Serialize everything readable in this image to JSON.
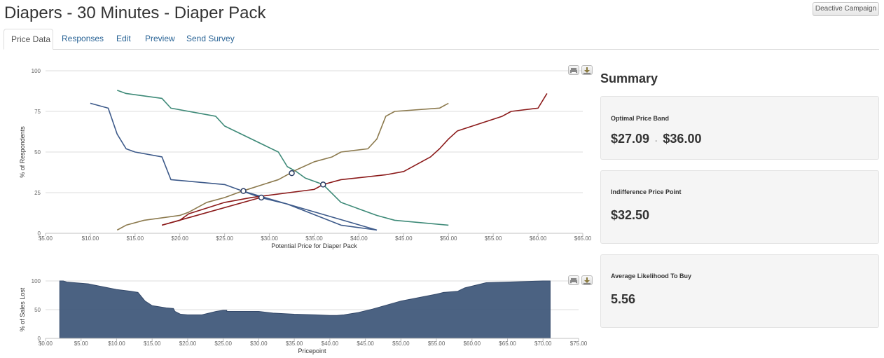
{
  "header": {
    "title": "Diapers - 30 Minutes - Diaper Pack",
    "deactivate_label": "Deactive Campaign"
  },
  "tabs": [
    {
      "label": "Price Data",
      "active": true
    },
    {
      "label": "Responses",
      "active": false
    },
    {
      "label": "Edit",
      "active": false
    },
    {
      "label": "Preview",
      "active": false
    },
    {
      "label": "Send Survey",
      "active": false
    }
  ],
  "icons": {
    "print": "print-icon",
    "download": "download-icon"
  },
  "chart_data": [
    {
      "type": "line",
      "xlabel": "Potential Price for Diaper Pack",
      "ylabel": "% of Respondents",
      "xlim": [
        5,
        65
      ],
      "ylim": [
        0,
        100
      ],
      "x_ticks": [
        "$5.00",
        "$10.00",
        "$15.00",
        "$20.00",
        "$25.00",
        "$30.00",
        "$35.00",
        "$40.00",
        "$45.00",
        "$50.00",
        "$55.00",
        "$60.00",
        "$65.00"
      ],
      "y_ticks": [
        "0",
        "25",
        "50",
        "75",
        "100"
      ],
      "grid": true,
      "series": [
        {
          "color": "#3d5a8a",
          "points": [
            [
              10,
              80
            ],
            [
              12,
              77
            ],
            [
              13,
              61
            ],
            [
              14,
              52
            ],
            [
              15,
              50
            ],
            [
              18,
              47
            ],
            [
              19,
              33
            ],
            [
              25,
              30
            ],
            [
              29,
              22
            ],
            [
              32,
              18
            ],
            [
              38,
              5
            ],
            [
              42,
              2
            ]
          ]
        },
        {
          "color": "#3e8a78",
          "points": [
            [
              13,
              88
            ],
            [
              14,
              86
            ],
            [
              18,
              83
            ],
            [
              19,
              77
            ],
            [
              24,
              72
            ],
            [
              25,
              66
            ],
            [
              31,
              50
            ],
            [
              32,
              41
            ],
            [
              33,
              38
            ],
            [
              34,
              34
            ],
            [
              36,
              30
            ],
            [
              38,
              19
            ],
            [
              42,
              11
            ],
            [
              44,
              8
            ],
            [
              50,
              5
            ]
          ]
        },
        {
          "color": "#8c7a4e",
          "points": [
            [
              13,
              2
            ],
            [
              14,
              5
            ],
            [
              16,
              8
            ],
            [
              20,
              11
            ],
            [
              21,
              13
            ],
            [
              23,
              19
            ],
            [
              25,
              22
            ],
            [
              27,
              26
            ],
            [
              31,
              33
            ],
            [
              33,
              39
            ],
            [
              35,
              44
            ],
            [
              37,
              47
            ],
            [
              38,
              50
            ],
            [
              41,
              52
            ],
            [
              42,
              58
            ],
            [
              43,
              72
            ],
            [
              44,
              75
            ],
            [
              49,
              77
            ],
            [
              50,
              80
            ]
          ]
        },
        {
          "color": "#8b1a1a",
          "points": [
            [
              18,
              5
            ],
            [
              20,
              8
            ],
            [
              21,
              12
            ],
            [
              25,
              19
            ],
            [
              28,
              22
            ],
            [
              35,
              27
            ],
            [
              36,
              30
            ],
            [
              38,
              33
            ],
            [
              43,
              36
            ],
            [
              45,
              38
            ],
            [
              48,
              47
            ],
            [
              49,
              52
            ],
            [
              50,
              58
            ],
            [
              51,
              63
            ],
            [
              56,
              72
            ],
            [
              57,
              75
            ],
            [
              60,
              77
            ],
            [
              61,
              86
            ]
          ]
        },
        {
          "color": "#3d5a8a",
          "points": [
            [
              27,
              26
            ],
            [
              42,
              2
            ]
          ]
        },
        {
          "color": "#8b1a1a",
          "points": [
            [
              18,
              5
            ],
            [
              29,
              22
            ]
          ]
        }
      ],
      "markers": [
        [
          27.1,
          26
        ],
        [
          29.1,
          22
        ],
        [
          32.5,
          37
        ],
        [
          36.0,
          30
        ]
      ]
    },
    {
      "type": "area",
      "xlabel": "Pricepoint",
      "ylabel": "% of Sales Lost",
      "xlim": [
        0,
        75
      ],
      "ylim": [
        0,
        100
      ],
      "x_ticks": [
        "$0.00",
        "$5.00",
        "$10.00",
        "$15.00",
        "$20.00",
        "$25.00",
        "$30.00",
        "$35.00",
        "$40.00",
        "$45.00",
        "$50.00",
        "$55.00",
        "$60.00",
        "$65.00",
        "$70.00",
        "$75.00"
      ],
      "y_ticks": [
        "0",
        "50",
        "100"
      ],
      "grid": true,
      "color": "#3c5577",
      "points": [
        [
          2,
          100
        ],
        [
          2.5,
          100
        ],
        [
          3,
          98
        ],
        [
          6,
          95
        ],
        [
          10,
          85
        ],
        [
          12,
          82
        ],
        [
          13,
          80
        ],
        [
          14,
          65
        ],
        [
          15,
          57
        ],
        [
          17,
          53
        ],
        [
          18,
          52
        ],
        [
          18.2,
          47
        ],
        [
          19,
          42
        ],
        [
          20,
          41
        ],
        [
          22,
          41
        ],
        [
          24,
          47
        ],
        [
          25,
          49
        ],
        [
          25.5,
          49
        ],
        [
          25.5,
          47
        ],
        [
          30,
          47
        ],
        [
          32,
          44
        ],
        [
          35,
          42
        ],
        [
          38,
          41
        ],
        [
          40,
          40
        ],
        [
          41,
          40
        ],
        [
          42,
          41
        ],
        [
          44,
          45
        ],
        [
          46,
          51
        ],
        [
          48,
          58
        ],
        [
          50,
          65
        ],
        [
          55,
          77
        ],
        [
          56,
          80
        ],
        [
          58,
          82
        ],
        [
          59,
          88
        ],
        [
          62,
          97
        ],
        [
          65,
          98
        ],
        [
          70,
          100
        ],
        [
          71,
          100
        ]
      ]
    }
  ],
  "summary": {
    "title": "Summary",
    "cards": [
      {
        "label": "Optimal Price Band",
        "value_low": "$27.09",
        "separator": "-",
        "value_high": "$36.00"
      },
      {
        "label": "Indifference Price Point",
        "value": "$32.50"
      },
      {
        "label": "Average Likelihood To Buy",
        "value": "5.56"
      }
    ]
  }
}
